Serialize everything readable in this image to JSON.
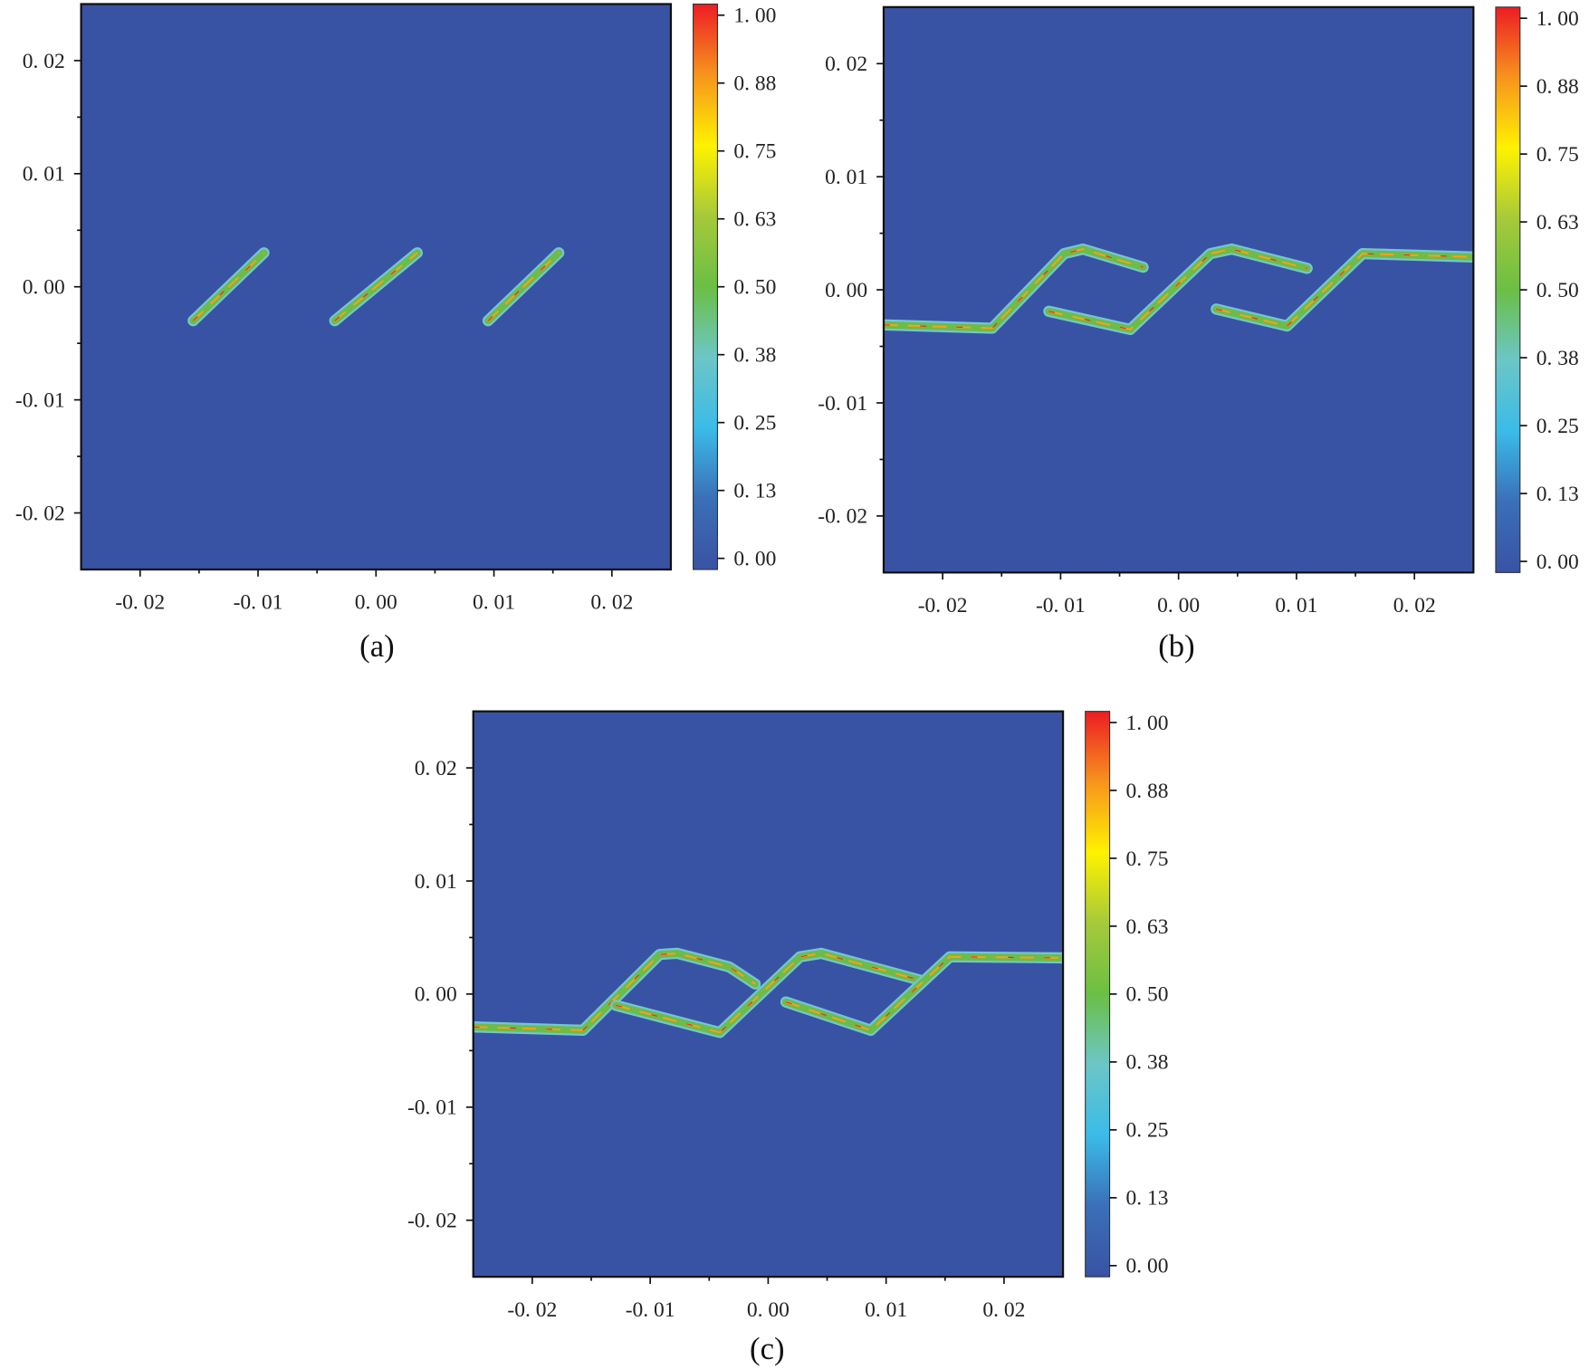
{
  "chart_data": [
    {
      "type": "heatmap",
      "panel_label": "(a)",
      "xlim": [
        -0.025,
        0.025
      ],
      "ylim": [
        -0.025,
        0.025
      ],
      "x_ticks": [
        "-0. 02",
        "-0. 01",
        "0. 00",
        "0. 01",
        "0. 02"
      ],
      "x_tick_values": [
        -0.02,
        -0.01,
        0,
        0.01,
        0.02
      ],
      "y_ticks": [
        "0. 02",
        "0. 01",
        "0. 00",
        "-0. 01",
        "-0. 02"
      ],
      "y_tick_values": [
        0.02,
        0.01,
        0,
        -0.01,
        -0.02
      ],
      "colorbar_ticks": [
        "1. 00",
        "0. 88",
        "0. 75",
        "0. 63",
        "0. 50",
        "0. 38",
        "0. 25",
        "0. 13",
        "0. 00"
      ],
      "colorbar_range": [
        0,
        1
      ],
      "background_value": 0,
      "cracks": [
        [
          [
            -0.0155,
            -0.003
          ],
          [
            -0.0095,
            0.003
          ]
        ],
        [
          [
            -0.0035,
            -0.003
          ],
          [
            0.0035,
            0.003
          ]
        ],
        [
          [
            0.0095,
            -0.003
          ],
          [
            0.0155,
            0.003
          ]
        ]
      ]
    },
    {
      "type": "heatmap",
      "panel_label": "(b)",
      "xlim": [
        -0.025,
        0.025
      ],
      "ylim": [
        -0.025,
        0.025
      ],
      "x_ticks": [
        "-0. 02",
        "-0. 01",
        "0. 00",
        "0. 01",
        "0. 02"
      ],
      "x_tick_values": [
        -0.02,
        -0.01,
        0,
        0.01,
        0.02
      ],
      "y_ticks": [
        "0. 02",
        "0. 01",
        "0. 00",
        "-0. 01",
        "-0. 02"
      ],
      "y_tick_values": [
        0.02,
        0.01,
        0,
        -0.01,
        -0.02
      ],
      "colorbar_ticks": [
        "1. 00",
        "0. 88",
        "0. 75",
        "0. 63",
        "0. 50",
        "0. 38",
        "0. 25",
        "0. 13",
        "0. 00"
      ],
      "colorbar_range": [
        0,
        1
      ],
      "background_value": 0,
      "cracks": [
        [
          [
            -0.025,
            -0.0031
          ],
          [
            -0.0158,
            -0.0034
          ],
          [
            -0.0097,
            0.0032
          ],
          [
            -0.0081,
            0.0036
          ],
          [
            -0.003,
            0.002
          ]
        ],
        [
          [
            -0.011,
            -0.0019
          ],
          [
            -0.0041,
            -0.0035
          ],
          [
            0.0027,
            0.0032
          ],
          [
            0.0045,
            0.0036
          ],
          [
            0.0109,
            0.0019
          ]
        ],
        [
          [
            0.0032,
            -0.0017
          ],
          [
            0.0092,
            -0.0032
          ],
          [
            0.0156,
            0.0032
          ],
          [
            0.025,
            0.0029
          ]
        ]
      ]
    },
    {
      "type": "heatmap",
      "panel_label": "(c)",
      "xlim": [
        -0.025,
        0.025
      ],
      "ylim": [
        -0.025,
        0.025
      ],
      "x_ticks": [
        "-0. 02",
        "-0. 01",
        "0. 00",
        "0. 01",
        "0. 02"
      ],
      "x_tick_values": [
        -0.02,
        -0.01,
        0,
        0.01,
        0.02
      ],
      "y_ticks": [
        "0. 02",
        "0. 01",
        "0. 00",
        "-0. 01",
        "-0. 02"
      ],
      "y_tick_values": [
        0.02,
        0.01,
        0,
        -0.01,
        -0.02
      ],
      "colorbar_ticks": [
        "1. 00",
        "0. 88",
        "0. 75",
        "0. 63",
        "0. 50",
        "0. 38",
        "0. 25",
        "0. 13",
        "0. 00"
      ],
      "colorbar_range": [
        0,
        1
      ],
      "background_value": 0,
      "cracks": [
        [
          [
            -0.025,
            -0.0029
          ],
          [
            -0.0157,
            -0.0032
          ],
          [
            -0.0092,
            0.0035
          ],
          [
            -0.0077,
            0.0036
          ],
          [
            -0.0033,
            0.0024
          ],
          [
            -0.0011,
            0.0009
          ]
        ],
        [
          [
            -0.0129,
            -0.001
          ],
          [
            -0.0041,
            -0.0034
          ],
          [
            0.0027,
            0.0033
          ],
          [
            0.0045,
            0.0036
          ],
          [
            0.013,
            0.0012
          ]
        ],
        [
          [
            0.0015,
            -0.0007
          ],
          [
            0.0087,
            -0.0032
          ],
          [
            0.0154,
            0.0033
          ],
          [
            0.025,
            0.0032
          ]
        ]
      ]
    }
  ],
  "colors": {
    "background": "#3953a4",
    "colormap": [
      "#3953a4",
      "#3b6fb8",
      "#3bbbe8",
      "#6cc6c6",
      "#6bbf45",
      "#a6c93a",
      "#fff200",
      "#f7941d",
      "#ed1c24"
    ],
    "crack_halo": "#72c7cf",
    "crack_body": "#6dbb4a",
    "crack_core": "#f6a21c",
    "crack_peak": "#e8262a"
  }
}
